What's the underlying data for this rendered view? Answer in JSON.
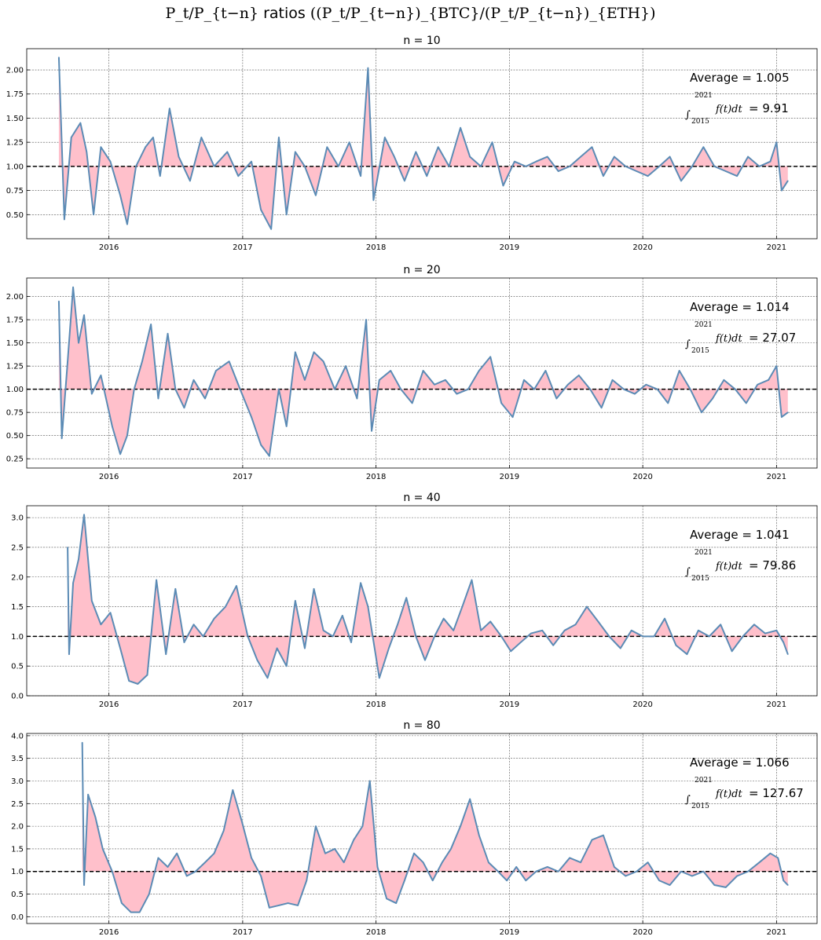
{
  "figure": {
    "title_math": "P_t/P_{t−n}",
    "title_word": "ratios",
    "title_expr": "((P_t/P_{t−n})_{BTC}/(P_t/P_{t−n})_{ETH})"
  },
  "chart_data": [
    {
      "type": "line",
      "title": "n = 10",
      "n": 10,
      "average_label": "Average = 1.005",
      "integral": {
        "upper": "2021",
        "lower": "2015",
        "expr": "f(t)dt",
        "value_label": "= 9.91"
      },
      "xlim": [
        "2015-05-21",
        "2021-04-22"
      ],
      "ylim": [
        0.25,
        2.22
      ],
      "yticks": [
        0.5,
        0.75,
        1.0,
        1.25,
        1.5,
        1.75,
        2.0
      ],
      "ytick_labels": [
        "0.50",
        "0.75",
        "1.00",
        "1.25",
        "1.50",
        "1.75",
        "2.00"
      ],
      "xticks": [
        "2016-01-01",
        "2017-01-01",
        "2018-01-01",
        "2019-01-01",
        "2020-01-01",
        "2021-01-01"
      ],
      "xtick_labels": [
        "2016",
        "2017",
        "2018",
        "2019",
        "2020",
        "2021"
      ],
      "baseline": 1.0,
      "grid": true,
      "series_color": "#5b8bb5",
      "fill_color": "#ffc0cb",
      "x": [
        "2015-08-17",
        "2015-09-01",
        "2015-09-20",
        "2015-10-15",
        "2015-11-01",
        "2015-11-20",
        "2015-12-10",
        "2016-01-05",
        "2016-02-01",
        "2016-02-20",
        "2016-03-15",
        "2016-04-10",
        "2016-05-01",
        "2016-05-20",
        "2016-06-15",
        "2016-07-10",
        "2016-08-10",
        "2016-09-10",
        "2016-10-15",
        "2016-11-20",
        "2016-12-20",
        "2017-01-25",
        "2017-02-20",
        "2017-03-20",
        "2017-04-10",
        "2017-05-01",
        "2017-05-25",
        "2017-06-20",
        "2017-07-20",
        "2017-08-20",
        "2017-09-20",
        "2017-10-20",
        "2017-11-20",
        "2017-12-10",
        "2017-12-25",
        "2018-01-25",
        "2018-02-20",
        "2018-03-20",
        "2018-04-20",
        "2018-05-20",
        "2018-06-20",
        "2018-07-20",
        "2018-08-20",
        "2018-09-15",
        "2018-10-15",
        "2018-11-15",
        "2018-12-15",
        "2019-01-15",
        "2019-02-15",
        "2019-03-15",
        "2019-04-15",
        "2019-05-15",
        "2019-06-15",
        "2019-07-15",
        "2019-08-15",
        "2019-09-15",
        "2019-10-15",
        "2019-11-15",
        "2019-12-15",
        "2020-01-15",
        "2020-02-15",
        "2020-03-15",
        "2020-04-15",
        "2020-05-15",
        "2020-06-15",
        "2020-07-15",
        "2020-08-15",
        "2020-09-15",
        "2020-10-15",
        "2020-11-15",
        "2020-12-15",
        "2021-01-01",
        "2021-01-15",
        "2021-02-01"
      ],
      "y": [
        2.13,
        0.45,
        1.3,
        1.45,
        1.15,
        0.5,
        1.2,
        1.05,
        0.7,
        0.4,
        1.0,
        1.2,
        1.3,
        0.9,
        1.6,
        1.1,
        0.85,
        1.3,
        1.0,
        1.15,
        0.9,
        1.05,
        0.55,
        0.35,
        1.3,
        0.5,
        1.15,
        1.0,
        0.7,
        1.2,
        1.0,
        1.25,
        0.9,
        2.02,
        0.65,
        1.3,
        1.1,
        0.85,
        1.15,
        0.9,
        1.2,
        1.0,
        1.4,
        1.1,
        1.0,
        1.25,
        0.8,
        1.05,
        1.0,
        1.05,
        1.1,
        0.95,
        1.0,
        1.1,
        1.2,
        0.9,
        1.1,
        1.0,
        0.95,
        0.9,
        1.0,
        1.1,
        0.85,
        1.0,
        1.2,
        1.0,
        0.95,
        0.9,
        1.1,
        1.0,
        1.05,
        1.25,
        0.75,
        0.85
      ]
    },
    {
      "type": "line",
      "title": "n = 20",
      "n": 20,
      "average_label": "Average = 1.014",
      "integral": {
        "upper": "2021",
        "lower": "2015",
        "expr": "f(t)dt",
        "value_label": "= 27.07"
      },
      "xlim": [
        "2015-05-21",
        "2021-04-22"
      ],
      "ylim": [
        0.15,
        2.2
      ],
      "yticks": [
        0.25,
        0.5,
        0.75,
        1.0,
        1.25,
        1.5,
        1.75,
        2.0
      ],
      "ytick_labels": [
        "0.25",
        "0.50",
        "0.75",
        "1.00",
        "1.25",
        "1.50",
        "1.75",
        "2.00"
      ],
      "xticks": [
        "2016-01-01",
        "2017-01-01",
        "2018-01-01",
        "2019-01-01",
        "2020-01-01",
        "2021-01-01"
      ],
      "xtick_labels": [
        "2016",
        "2017",
        "2018",
        "2019",
        "2020",
        "2021"
      ],
      "baseline": 1.0,
      "grid": true,
      "series_color": "#5b8bb5",
      "fill_color": "#ffc0cb",
      "x": [
        "2015-08-17",
        "2015-08-25",
        "2015-09-10",
        "2015-09-25",
        "2015-10-10",
        "2015-10-25",
        "2015-11-15",
        "2015-12-10",
        "2016-01-10",
        "2016-02-01",
        "2016-02-20",
        "2016-03-10",
        "2016-04-01",
        "2016-04-25",
        "2016-05-15",
        "2016-06-10",
        "2016-07-01",
        "2016-07-25",
        "2016-08-20",
        "2016-09-20",
        "2016-10-20",
        "2016-11-25",
        "2016-12-25",
        "2017-01-25",
        "2017-02-20",
        "2017-03-15",
        "2017-04-10",
        "2017-05-01",
        "2017-05-25",
        "2017-06-20",
        "2017-07-15",
        "2017-08-10",
        "2017-09-10",
        "2017-10-10",
        "2017-11-10",
        "2017-12-05",
        "2017-12-20",
        "2018-01-10",
        "2018-02-10",
        "2018-03-10",
        "2018-04-10",
        "2018-05-10",
        "2018-06-10",
        "2018-07-10",
        "2018-08-10",
        "2018-09-10",
        "2018-10-10",
        "2018-11-10",
        "2018-12-10",
        "2019-01-10",
        "2019-02-10",
        "2019-03-10",
        "2019-04-10",
        "2019-05-10",
        "2019-06-10",
        "2019-07-10",
        "2019-08-10",
        "2019-09-10",
        "2019-10-10",
        "2019-11-10",
        "2019-12-10",
        "2020-01-10",
        "2020-02-10",
        "2020-03-10",
        "2020-04-10",
        "2020-05-10",
        "2020-06-10",
        "2020-07-10",
        "2020-08-10",
        "2020-09-10",
        "2020-10-10",
        "2020-11-10",
        "2020-12-10",
        "2021-01-01",
        "2021-01-15",
        "2021-02-01"
      ],
      "y": [
        1.95,
        0.47,
        1.3,
        2.1,
        1.5,
        1.8,
        0.95,
        1.15,
        0.6,
        0.3,
        0.5,
        1.0,
        1.3,
        1.7,
        0.9,
        1.6,
        1.0,
        0.8,
        1.1,
        0.9,
        1.2,
        1.3,
        1.0,
        0.7,
        0.4,
        0.28,
        1.0,
        0.6,
        1.4,
        1.1,
        1.4,
        1.3,
        1.0,
        1.25,
        0.9,
        1.75,
        0.55,
        1.1,
        1.2,
        1.0,
        0.85,
        1.2,
        1.05,
        1.1,
        0.95,
        1.0,
        1.2,
        1.35,
        0.85,
        0.7,
        1.1,
        1.0,
        1.2,
        0.9,
        1.05,
        1.15,
        1.0,
        0.8,
        1.1,
        1.0,
        0.95,
        1.05,
        1.0,
        0.85,
        1.2,
        1.0,
        0.75,
        0.9,
        1.1,
        1.0,
        0.85,
        1.05,
        1.1,
        1.25,
        0.7,
        0.75
      ]
    },
    {
      "type": "line",
      "title": "n = 40",
      "n": 40,
      "average_label": "Average = 1.041",
      "integral": {
        "upper": "2021",
        "lower": "2015",
        "expr": "f(t)dt",
        "value_label": "= 79.86"
      },
      "xlim": [
        "2015-05-21",
        "2021-04-22"
      ],
      "ylim": [
        0.0,
        3.2
      ],
      "yticks": [
        0.0,
        0.5,
        1.0,
        1.5,
        2.0,
        2.5,
        3.0
      ],
      "ytick_labels": [
        "0.0",
        "0.5",
        "1.0",
        "1.5",
        "2.0",
        "2.5",
        "3.0"
      ],
      "xticks": [
        "2016-01-01",
        "2017-01-01",
        "2018-01-01",
        "2019-01-01",
        "2020-01-01",
        "2021-01-01"
      ],
      "xtick_labels": [
        "2016",
        "2017",
        "2018",
        "2019",
        "2020",
        "2021"
      ],
      "baseline": 1.0,
      "grid": true,
      "series_color": "#5b8bb5",
      "fill_color": "#ffc0cb",
      "x": [
        "2015-09-10",
        "2015-09-14",
        "2015-09-25",
        "2015-10-10",
        "2015-10-25",
        "2015-11-15",
        "2015-12-10",
        "2016-01-05",
        "2016-02-01",
        "2016-02-25",
        "2016-03-20",
        "2016-04-15",
        "2016-05-10",
        "2016-06-05",
        "2016-07-01",
        "2016-07-25",
        "2016-08-20",
        "2016-09-15",
        "2016-10-15",
        "2016-11-15",
        "2016-12-15",
        "2017-01-15",
        "2017-02-10",
        "2017-03-10",
        "2017-04-05",
        "2017-05-01",
        "2017-05-25",
        "2017-06-20",
        "2017-07-15",
        "2017-08-10",
        "2017-09-05",
        "2017-10-01",
        "2017-10-25",
        "2017-11-20",
        "2017-12-10",
        "2018-01-10",
        "2018-02-05",
        "2018-03-01",
        "2018-03-25",
        "2018-04-20",
        "2018-05-15",
        "2018-06-10",
        "2018-07-05",
        "2018-08-01",
        "2018-08-25",
        "2018-09-20",
        "2018-10-15",
        "2018-11-10",
        "2018-12-10",
        "2019-01-05",
        "2019-02-01",
        "2019-03-01",
        "2019-04-01",
        "2019-05-01",
        "2019-06-01",
        "2019-07-01",
        "2019-08-01",
        "2019-09-01",
        "2019-10-01",
        "2019-11-01",
        "2019-12-01",
        "2020-01-01",
        "2020-02-01",
        "2020-03-01",
        "2020-04-01",
        "2020-05-01",
        "2020-06-01",
        "2020-07-01",
        "2020-08-01",
        "2020-09-01",
        "2020-10-01",
        "2020-11-01",
        "2020-12-01",
        "2021-01-01",
        "2021-01-20",
        "2021-02-01"
      ],
      "y": [
        2.5,
        0.7,
        1.9,
        2.3,
        3.05,
        1.6,
        1.2,
        1.4,
        0.8,
        0.25,
        0.2,
        0.35,
        1.95,
        0.7,
        1.8,
        0.9,
        1.2,
        1.0,
        1.3,
        1.5,
        1.85,
        1.0,
        0.6,
        0.3,
        0.8,
        0.5,
        1.6,
        0.8,
        1.8,
        1.1,
        1.0,
        1.35,
        0.9,
        1.9,
        1.5,
        0.3,
        0.8,
        1.2,
        1.65,
        1.0,
        0.6,
        1.0,
        1.3,
        1.1,
        1.5,
        1.95,
        1.1,
        1.25,
        1.0,
        0.75,
        0.9,
        1.05,
        1.1,
        0.85,
        1.1,
        1.2,
        1.5,
        1.25,
        1.0,
        0.8,
        1.1,
        1.0,
        1.0,
        1.3,
        0.85,
        0.7,
        1.1,
        1.0,
        1.2,
        0.75,
        1.0,
        1.2,
        1.05,
        1.1,
        0.9,
        0.7
      ]
    },
    {
      "type": "line",
      "title": "n = 80",
      "n": 80,
      "average_label": "Average = 1.066",
      "integral": {
        "upper": "2021",
        "lower": "2015",
        "expr": "f(t)dt",
        "value_label": "= 127.67"
      },
      "xlim": [
        "2015-05-21",
        "2021-04-22"
      ],
      "ylim": [
        -0.15,
        4.05
      ],
      "yticks": [
        0.0,
        0.5,
        1.0,
        1.5,
        2.0,
        2.5,
        3.0,
        3.5,
        4.0
      ],
      "ytick_labels": [
        "0.0",
        "0.5",
        "1.0",
        "1.5",
        "2.0",
        "2.5",
        "3.0",
        "3.5",
        "4.0"
      ],
      "xticks": [
        "2016-01-01",
        "2017-01-01",
        "2018-01-01",
        "2019-01-01",
        "2020-01-01",
        "2021-01-01"
      ],
      "xtick_labels": [
        "2016",
        "2017",
        "2018",
        "2019",
        "2020",
        "2021"
      ],
      "baseline": 1.0,
      "grid": true,
      "series_color": "#5b8bb5",
      "fill_color": "#ffc0cb",
      "x": [
        "2015-10-20",
        "2015-10-25",
        "2015-11-05",
        "2015-11-25",
        "2015-12-15",
        "2016-01-10",
        "2016-02-05",
        "2016-03-01",
        "2016-03-25",
        "2016-04-20",
        "2016-05-15",
        "2016-06-10",
        "2016-07-05",
        "2016-08-01",
        "2016-08-25",
        "2016-09-20",
        "2016-10-15",
        "2016-11-10",
        "2016-12-05",
        "2016-12-30",
        "2017-01-25",
        "2017-02-20",
        "2017-03-15",
        "2017-04-10",
        "2017-05-05",
        "2017-06-01",
        "2017-06-25",
        "2017-07-20",
        "2017-08-15",
        "2017-09-10",
        "2017-10-05",
        "2017-11-01",
        "2017-11-25",
        "2017-12-15",
        "2018-01-05",
        "2018-01-30",
        "2018-02-25",
        "2018-03-20",
        "2018-04-15",
        "2018-05-10",
        "2018-06-05",
        "2018-07-01",
        "2018-07-25",
        "2018-08-20",
        "2018-09-15",
        "2018-10-10",
        "2018-11-05",
        "2018-12-01",
        "2018-12-25",
        "2019-01-20",
        "2019-02-15",
        "2019-03-15",
        "2019-04-15",
        "2019-05-15",
        "2019-06-15",
        "2019-07-15",
        "2019-08-15",
        "2019-09-15",
        "2019-10-15",
        "2019-11-15",
        "2019-12-15",
        "2020-01-15",
        "2020-02-15",
        "2020-03-15",
        "2020-04-15",
        "2020-05-15",
        "2020-06-15",
        "2020-07-15",
        "2020-08-15",
        "2020-09-15",
        "2020-10-15",
        "2020-11-15",
        "2020-12-15",
        "2021-01-05",
        "2021-01-20",
        "2021-02-01"
      ],
      "y": [
        3.85,
        0.7,
        2.7,
        2.2,
        1.5,
        1.0,
        0.3,
        0.1,
        0.1,
        0.5,
        1.3,
        1.1,
        1.4,
        0.9,
        1.0,
        1.2,
        1.4,
        1.9,
        2.8,
        2.1,
        1.3,
        0.9,
        0.2,
        0.25,
        0.3,
        0.25,
        0.8,
        2.0,
        1.4,
        1.5,
        1.2,
        1.7,
        2.0,
        3.0,
        1.1,
        0.4,
        0.3,
        0.8,
        1.4,
        1.2,
        0.8,
        1.2,
        1.5,
        2.0,
        2.6,
        1.8,
        1.2,
        1.0,
        0.8,
        1.1,
        0.8,
        1.0,
        1.1,
        1.0,
        1.3,
        1.2,
        1.7,
        1.8,
        1.1,
        0.9,
        1.0,
        1.2,
        0.8,
        0.7,
        1.0,
        0.9,
        1.0,
        0.7,
        0.65,
        0.9,
        1.0,
        1.2,
        1.4,
        1.3,
        0.8,
        0.7
      ]
    }
  ]
}
